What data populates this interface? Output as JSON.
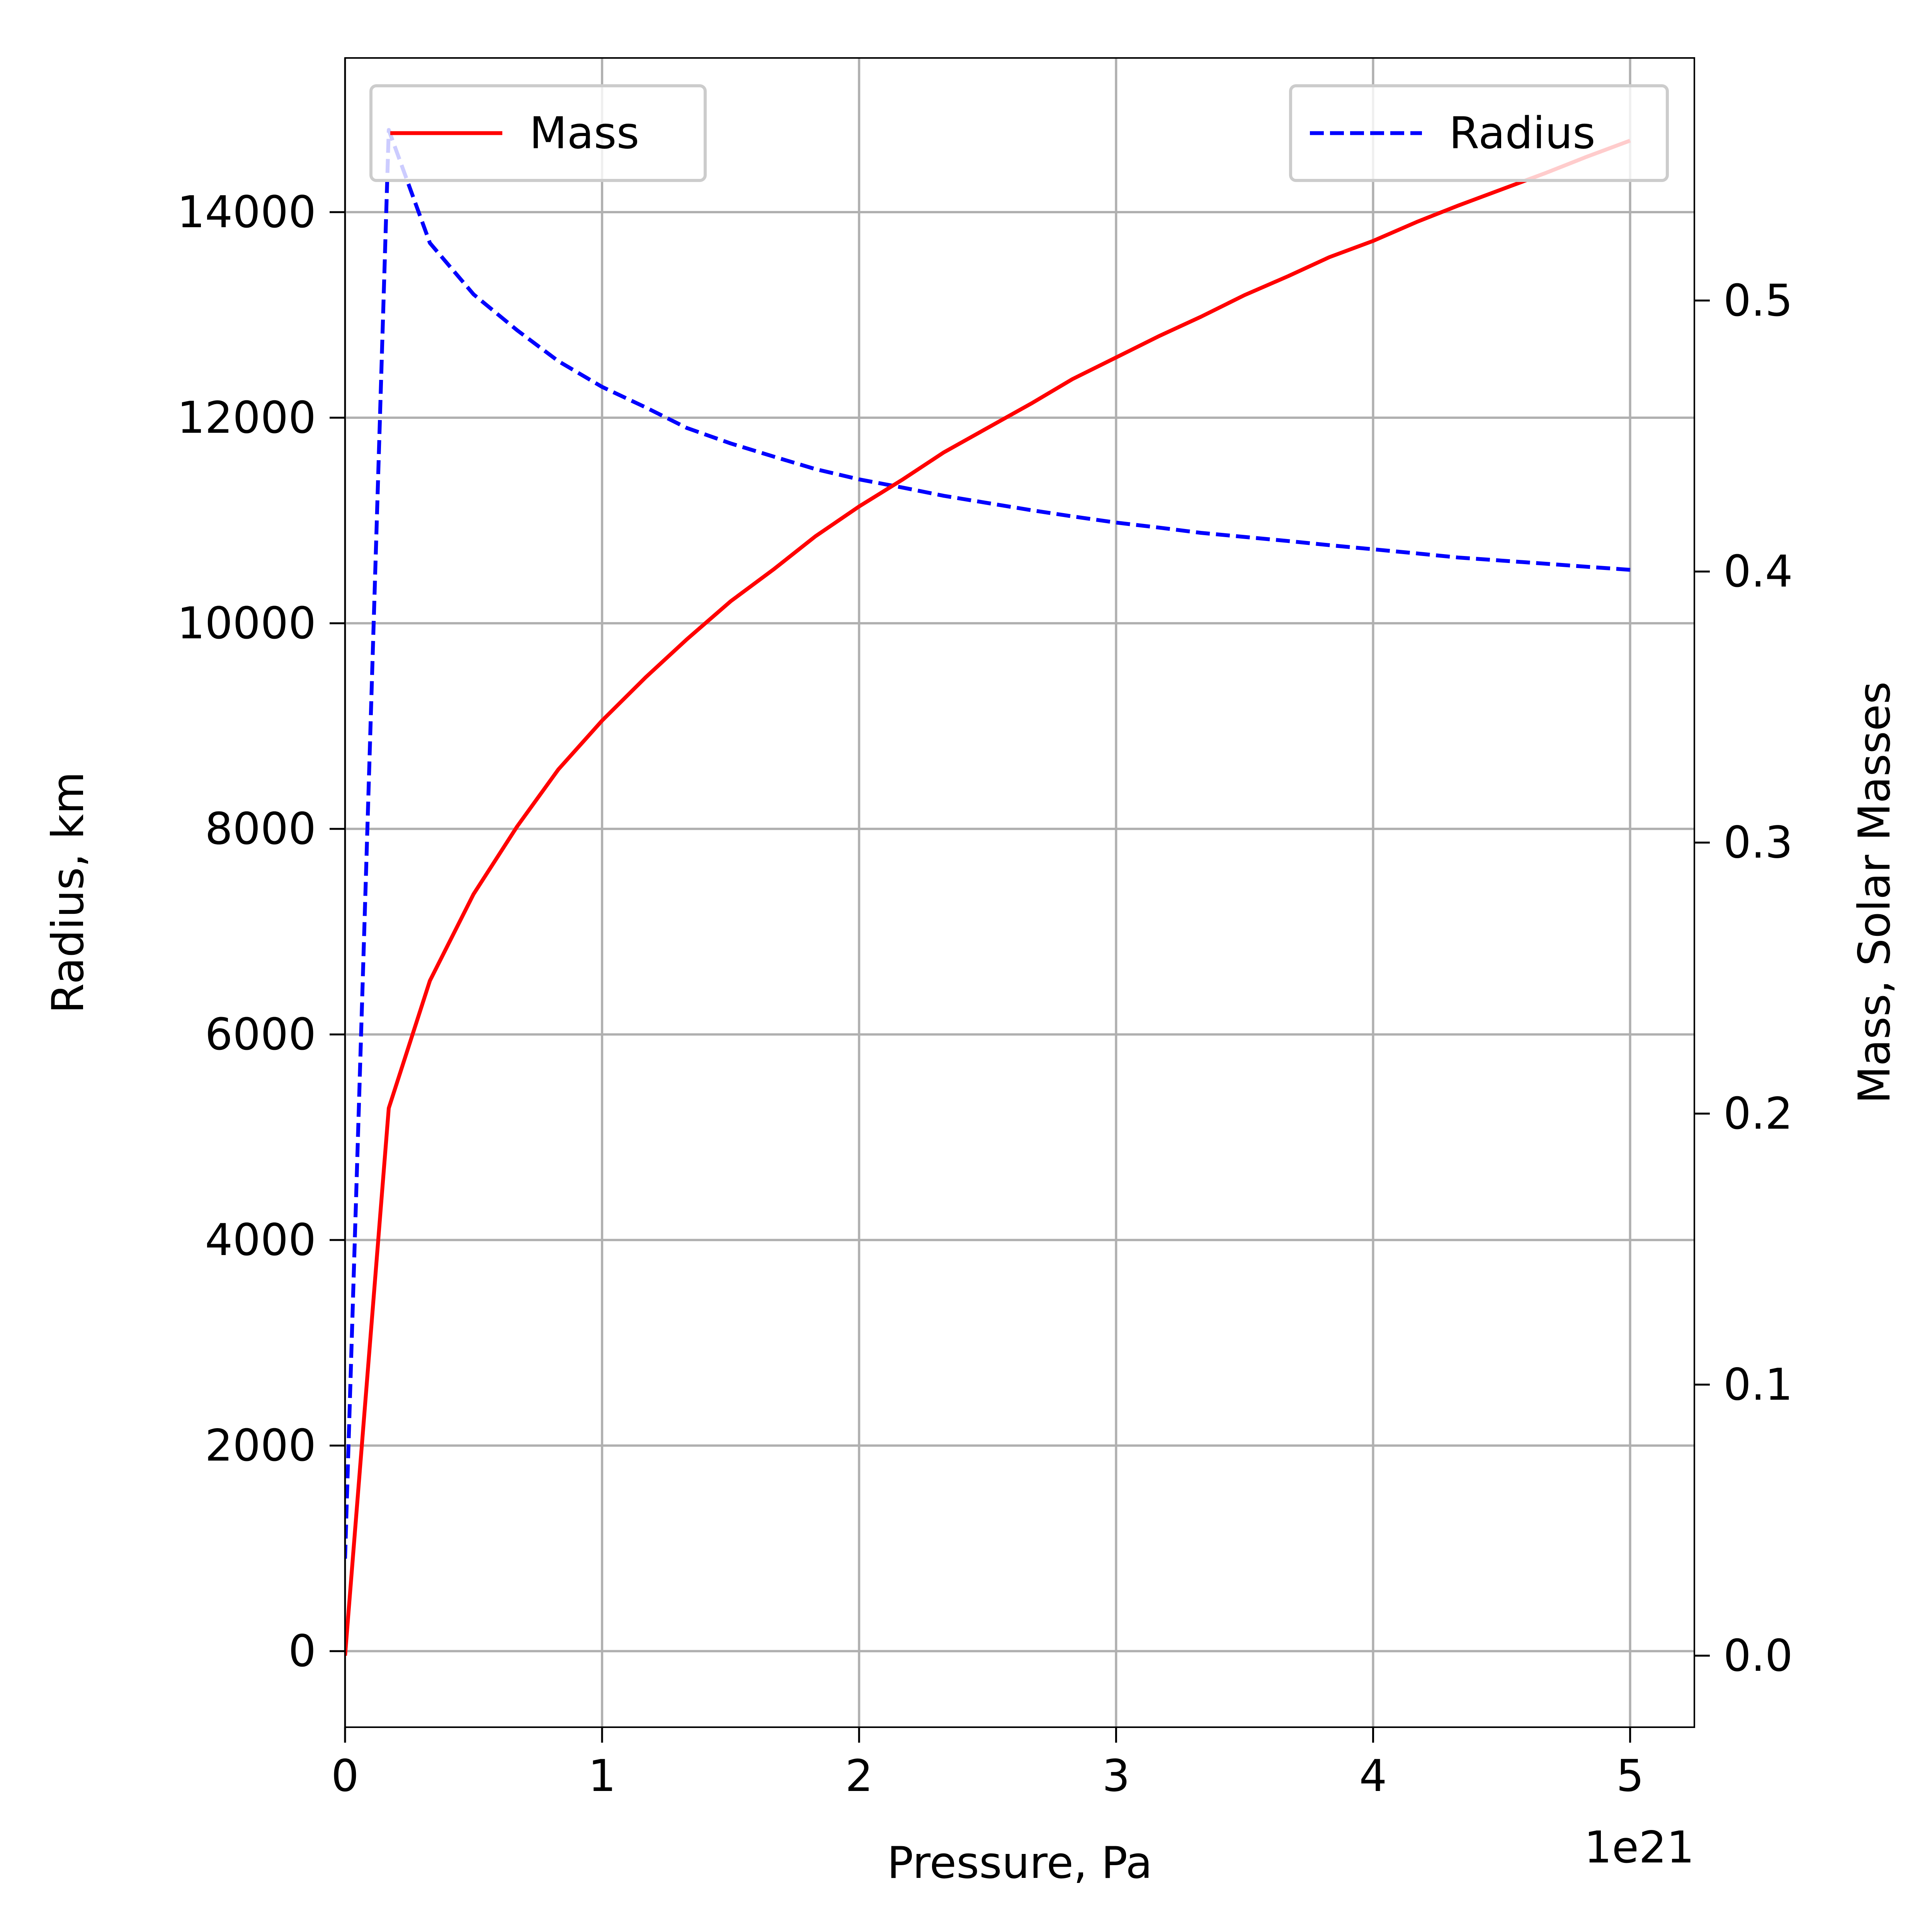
{
  "chart_data": {
    "type": "line",
    "xlabel": "Pressure, Pa",
    "ylabel_left": "Radius, km",
    "ylabel_right": "Mass, Solar Masses",
    "x_offset_label": "1e21",
    "x_multiplier": 1e+21,
    "xlim": [
      0,
      5.25
    ],
    "ylim_left": [
      -740,
      15500
    ],
    "ylim_right": [
      -0.0264,
      0.5895
    ],
    "x_ticks": [
      0,
      1,
      2,
      3,
      4,
      5
    ],
    "x_tick_labels": [
      "0",
      "1",
      "2",
      "3",
      "4",
      "5"
    ],
    "y_left_ticks": [
      0,
      2000,
      4000,
      6000,
      8000,
      10000,
      12000,
      14000
    ],
    "y_left_tick_labels": [
      "0",
      "2000",
      "4000",
      "6000",
      "8000",
      "10000",
      "12000",
      "14000"
    ],
    "y_right_ticks": [
      0,
      0.1,
      0.2,
      0.3,
      0.4,
      0.5
    ],
    "y_right_tick_labels": [
      "0.0",
      "0.1",
      "0.2",
      "0.3",
      "0.4",
      "0.5"
    ],
    "grid": true,
    "series": [
      {
        "name": "Mass",
        "axis": "right",
        "color": "#ff0000",
        "style": "solid",
        "x": [
          0,
          0.17,
          0.33,
          0.5,
          0.67,
          0.83,
          1.0,
          1.17,
          1.33,
          1.5,
          1.67,
          1.83,
          2.0,
          2.17,
          2.33,
          2.5,
          2.67,
          2.83,
          3.0,
          3.17,
          3.33,
          3.5,
          3.67,
          3.83,
          4.0,
          4.17,
          4.33,
          4.5,
          4.67,
          4.83,
          5.0
        ],
        "values": [
          0.0,
          0.202,
          0.249,
          0.281,
          0.306,
          0.327,
          0.345,
          0.361,
          0.375,
          0.389,
          0.401,
          0.413,
          0.424,
          0.434,
          0.444,
          0.453,
          0.462,
          0.471,
          0.479,
          0.487,
          0.494,
          0.502,
          0.509,
          0.516,
          0.522,
          0.529,
          0.535,
          0.541,
          0.547,
          0.553,
          0.559
        ]
      },
      {
        "name": "Radius",
        "axis": "left",
        "color": "#0000ff",
        "style": "dashed",
        "x": [
          0,
          0.17,
          0.33,
          0.5,
          0.67,
          0.83,
          1.0,
          1.17,
          1.33,
          1.5,
          1.67,
          1.83,
          2.0,
          2.17,
          2.33,
          2.5,
          2.67,
          2.83,
          3.0,
          3.17,
          3.33,
          3.5,
          3.67,
          3.83,
          4.0,
          4.17,
          4.33,
          4.5,
          4.67,
          4.83,
          5.0
        ],
        "values": [
          900,
          14800,
          13700,
          13200,
          12850,
          12550,
          12300,
          12100,
          11900,
          11750,
          11620,
          11500,
          11400,
          11320,
          11240,
          11170,
          11100,
          11040,
          10980,
          10930,
          10880,
          10840,
          10800,
          10760,
          10720,
          10680,
          10640,
          10610,
          10580,
          10550,
          10520
        ]
      }
    ],
    "legends": [
      {
        "position": "upper-left",
        "entries": [
          {
            "label": "Mass",
            "series": 0
          }
        ]
      },
      {
        "position": "upper-right",
        "entries": [
          {
            "label": "Radius",
            "series": 1
          }
        ]
      }
    ]
  }
}
